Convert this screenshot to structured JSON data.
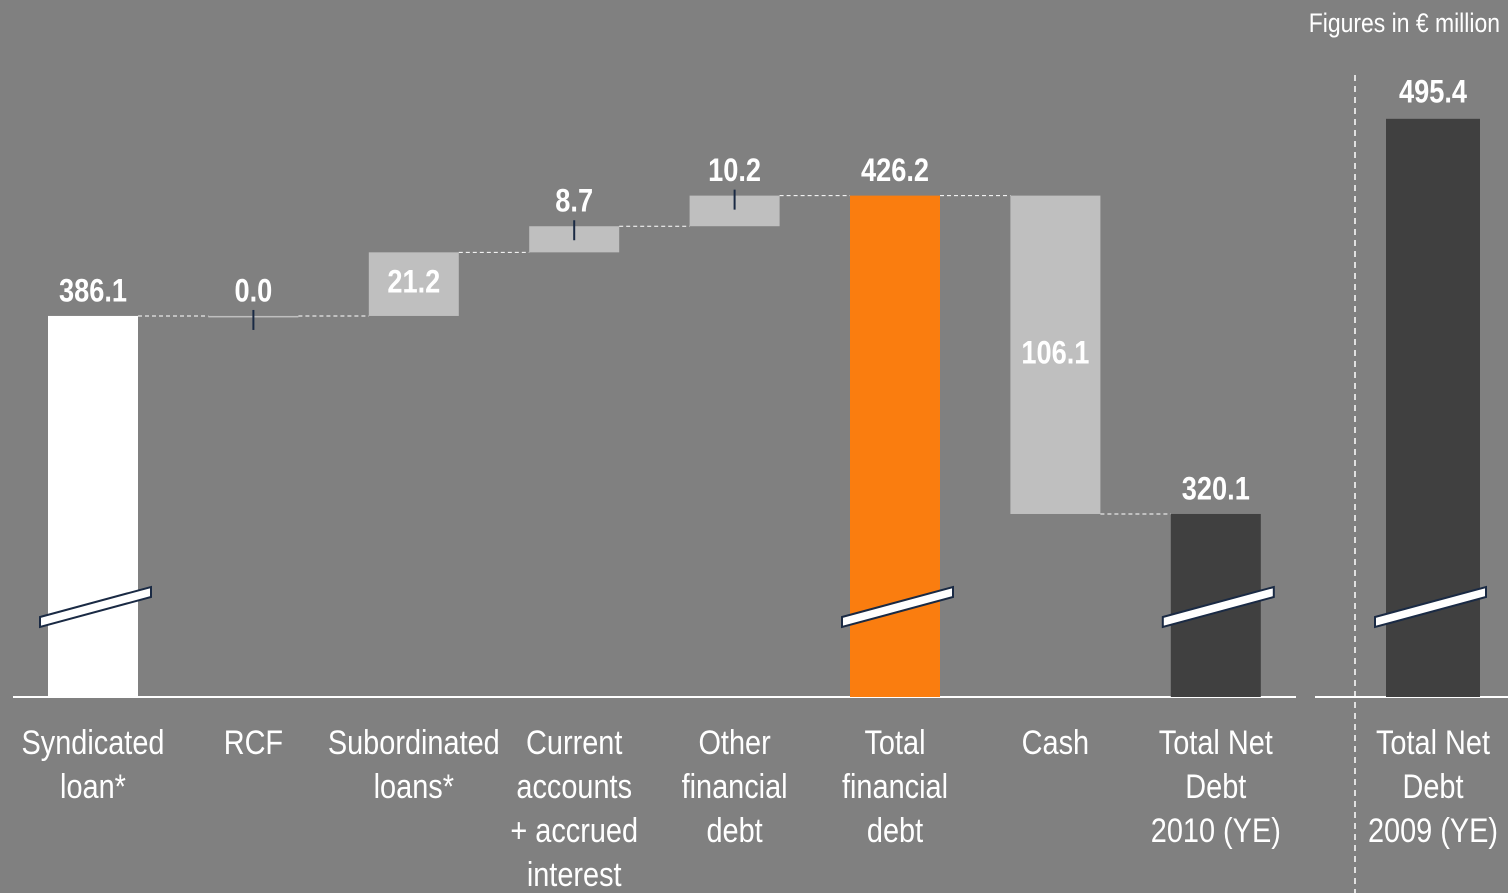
{
  "chart_data": [
    {
      "type": "waterfall",
      "note": "Figures in € million",
      "categories": [
        [
          "Syndicated",
          "loan*"
        ],
        [
          "RCF"
        ],
        [
          "Subordinated",
          "loans*"
        ],
        [
          "Current",
          "accounts",
          "+ accrued",
          "interest"
        ],
        [
          "Other",
          "financial",
          "debt"
        ],
        [
          "Total",
          "financial",
          "debt"
        ],
        [
          "Cash"
        ],
        [
          "Total Net",
          "Debt",
          "2010 (YE)"
        ]
      ],
      "values": [
        386.1,
        0.0,
        21.2,
        8.7,
        10.2,
        426.2,
        106.1,
        320.1
      ],
      "value_labels": [
        "386.1",
        "0.0",
        "21.2",
        "8.7",
        "10.2",
        "426.2",
        "106.1",
        "320.1"
      ],
      "measures": [
        "absolute",
        "increase",
        "increase",
        "increase",
        "increase",
        "total",
        "decrease",
        "total"
      ],
      "colors": [
        "#ffffff",
        "#bfbfbf",
        "#bfbfbf",
        "#bfbfbf",
        "#bfbfbf",
        "#fa7d0f",
        "#bfbfbf",
        "#404040"
      ],
      "ylim": [
        259.1,
        491.4
      ]
    },
    {
      "type": "bar",
      "categories": [
        [
          "Total Net",
          "Debt",
          "2009 (YE)"
        ]
      ],
      "values": [
        495.4
      ],
      "value_labels": [
        "495.4"
      ],
      "color": "#404040",
      "ylim": [
        302.7,
        535.0
      ]
    }
  ]
}
